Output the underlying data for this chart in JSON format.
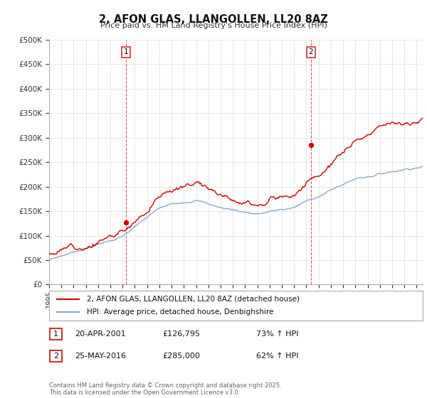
{
  "title": "2, AFON GLAS, LLANGOLLEN, LL20 8AZ",
  "subtitle": "Price paid vs. HM Land Registry's House Price Index (HPI)",
  "legend_line1": "2, AFON GLAS, LLANGOLLEN, LL20 8AZ (detached house)",
  "legend_line2": "HPI: Average price, detached house, Denbighshire",
  "transaction1_date": "20-APR-2001",
  "transaction1_price": "£126,795",
  "transaction1_hpi": "73% ↑ HPI",
  "transaction1_year": 2001.29,
  "transaction1_price_val": 126795,
  "transaction2_date": "25-MAY-2016",
  "transaction2_price": "£285,000",
  "transaction2_hpi": "62% ↑ HPI",
  "transaction2_year": 2016.38,
  "transaction2_price_val": 285000,
  "footer": "Contains HM Land Registry data © Crown copyright and database right 2025.\nThis data is licensed under the Open Government Licence v3.0.",
  "property_color": "#cc0000",
  "hpi_color": "#88aacc",
  "ylim_min": 0,
  "ylim_max": 500000,
  "xlim_min": 1995,
  "xlim_max": 2025.5,
  "background_color": "#ffffff",
  "grid_color": "#dddddd"
}
